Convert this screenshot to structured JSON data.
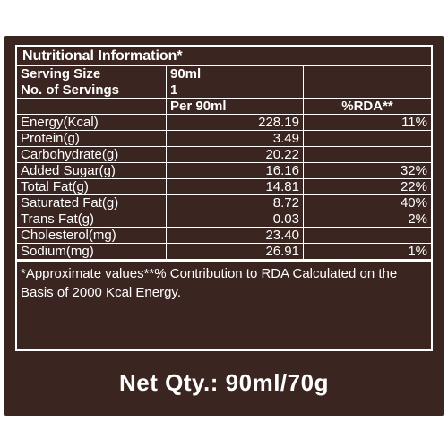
{
  "panel": {
    "title": "Nutritional Information*",
    "serving_size_label": "Serving Size",
    "serving_size_value": "90ml",
    "servings_label": "No. of Servings",
    "servings_value": "1",
    "col_per": "Per 90ml",
    "col_rda": "%RDA**",
    "rows": [
      {
        "label": "Energy(Kcal)",
        "value": "228.19",
        "rda": "11%"
      },
      {
        "label": "Protein(g)",
        "value": "3.49",
        "rda": ""
      },
      {
        "label": "Carbohydrate(g)",
        "value": "20.22",
        "rda": ""
      },
      {
        "label": "Added Sugar(g)",
        "value": "16.16",
        "rda": "32%"
      },
      {
        "label": "Total Fat(g)",
        "value": "14.81",
        "rda": "22%"
      },
      {
        "label": "Saturated Fat(g)",
        "value": "8.72",
        "rda": "40%"
      },
      {
        "label": "Trans Fat(g)",
        "value": "0.03",
        "rda": "2%"
      },
      {
        "label": "Cholesterol(mg)",
        "value": "23.40",
        "rda": ""
      },
      {
        "label": "Sodium(mg)",
        "value": "26.91",
        "rda": "1%"
      }
    ],
    "footnote_line1": "*Approximate values**% Contribution to RDA Calculated on the",
    "footnote_line2": "Basis of 2000 Kcal Energy.",
    "net_qty": "Net Qty.: 90ml/70g"
  },
  "colors": {
    "background": "#3b2520",
    "text": "#ffffff"
  }
}
